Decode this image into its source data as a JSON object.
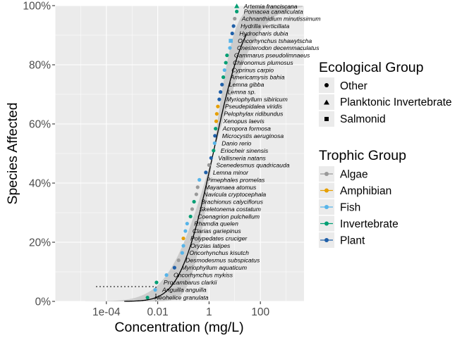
{
  "chart_data": {
    "type": "scatter",
    "xlabel": "Concentration (mg/L)",
    "ylabel": "Species Affected",
    "x_scale": "log10",
    "xlim": [
      1e-06,
      5000
    ],
    "ylim": [
      0,
      100
    ],
    "x_ticks": [
      {
        "value": 0.0001,
        "label": "1e-04"
      },
      {
        "value": 0.01,
        "label": "0.01"
      },
      {
        "value": 1,
        "label": "1"
      },
      {
        "value": 100,
        "label": "100"
      }
    ],
    "y_ticks": [
      {
        "value": 0,
        "label": "0%"
      },
      {
        "value": 20,
        "label": "20%"
      },
      {
        "value": 40,
        "label": "40%"
      },
      {
        "value": 60,
        "label": "60%"
      },
      {
        "value": 80,
        "label": "80%"
      },
      {
        "value": 100,
        "label": "100%"
      }
    ],
    "grid": true,
    "legend_position": "right",
    "colors": {
      "Algae": "#999999",
      "Amphibian": "#E69F00",
      "Fish": "#56B4E9",
      "Invertebrate": "#009E73",
      "Plant": "#1F5FA8",
      "fit_line": "#000000",
      "confidence_band": "#cccccc",
      "panel": "#ebebeb"
    },
    "hc5_guide": {
      "x": 0.0085,
      "y": 5
    },
    "fit_curve": {
      "description_model": "log-normal",
      "mean_log10": 0.16,
      "sd_log10": 1.0,
      "x_range": [
        0.0005,
        30
      ]
    },
    "confidence_band": {
      "sd_low": 0.62,
      "sd_high": 1.35
    },
    "points": [
      {
        "species": "Neohelice granulata",
        "x": 0.004,
        "y": 1.3,
        "trophic": "Invertebrate",
        "eco": "Other"
      },
      {
        "species": "Anguilla anguilla",
        "x": 0.008,
        "y": 3.9,
        "trophic": "Fish",
        "eco": "Other"
      },
      {
        "species": "Procambarus clarkii",
        "x": 0.009,
        "y": 6.4,
        "trophic": "Invertebrate",
        "eco": "Other"
      },
      {
        "species": "Oncorhynchus mykiss",
        "x": 0.022,
        "y": 8.9,
        "trophic": "Fish",
        "eco": "Other"
      },
      {
        "species": "Myriophyllum aquaticum",
        "x": 0.045,
        "y": 11.4,
        "trophic": "Plant",
        "eco": "Other"
      },
      {
        "species": "Desmodesmus subspicatus",
        "x": 0.065,
        "y": 13.9,
        "trophic": "Algae",
        "eco": "Other"
      },
      {
        "species": "Oncorhynchus kisutch",
        "x": 0.09,
        "y": 16.4,
        "trophic": "Fish",
        "eco": "Other"
      },
      {
        "species": "Oryzias latipes",
        "x": 0.1,
        "y": 18.8,
        "trophic": "Fish",
        "eco": "Other"
      },
      {
        "species": "Polypedates cruciger",
        "x": 0.1,
        "y": 21.3,
        "trophic": "Amphibian",
        "eco": "Other"
      },
      {
        "species": "Clarias gariepinus",
        "x": 0.12,
        "y": 23.8,
        "trophic": "Fish",
        "eco": "Other"
      },
      {
        "species": "Rhamdia quelen",
        "x": 0.14,
        "y": 26.3,
        "trophic": "Fish",
        "eco": "Other"
      },
      {
        "species": "Coenagrion pulchellum",
        "x": 0.19,
        "y": 28.7,
        "trophic": "Invertebrate",
        "eco": "Other"
      },
      {
        "species": "Skeletonema costatum",
        "x": 0.22,
        "y": 31.2,
        "trophic": "Algae",
        "eco": "Other"
      },
      {
        "species": "Brachionus calyciflorus",
        "x": 0.26,
        "y": 33.7,
        "trophic": "Invertebrate",
        "eco": "Other"
      },
      {
        "species": "Navicula cryptocephala",
        "x": 0.32,
        "y": 36.2,
        "trophic": "Algae",
        "eco": "Other"
      },
      {
        "species": "Mayamaea atomus",
        "x": 0.36,
        "y": 38.6,
        "trophic": "Algae",
        "eco": "Other"
      },
      {
        "species": "Pimephales promelas",
        "x": 0.42,
        "y": 41.1,
        "trophic": "Fish",
        "eco": "Other"
      },
      {
        "species": "Lemna minor",
        "x": 0.75,
        "y": 43.6,
        "trophic": "Plant",
        "eco": "Other"
      },
      {
        "species": "Scenedesmus quadricauda",
        "x": 1.0,
        "y": 46.1,
        "trophic": "Algae",
        "eco": "Other"
      },
      {
        "species": "Vallisneria natans",
        "x": 1.2,
        "y": 48.5,
        "trophic": "Plant",
        "eco": "Other"
      },
      {
        "species": "Eriocheir sinensis",
        "x": 1.5,
        "y": 51.0,
        "trophic": "Invertebrate",
        "eco": "Other"
      },
      {
        "species": "Danio rerio",
        "x": 1.65,
        "y": 53.5,
        "trophic": "Fish",
        "eco": "Other"
      },
      {
        "species": "Microcystis aeruginosa",
        "x": 1.7,
        "y": 56.0,
        "trophic": "Plant",
        "eco": "Other"
      },
      {
        "species": "Acropora formosa",
        "x": 1.8,
        "y": 58.4,
        "trophic": "Invertebrate",
        "eco": "Other"
      },
      {
        "species": "Xenopus laevis",
        "x": 1.9,
        "y": 60.9,
        "trophic": "Amphibian",
        "eco": "Other"
      },
      {
        "species": "Pelophylax ridibundus",
        "x": 2.0,
        "y": 63.4,
        "trophic": "Amphibian",
        "eco": "Other"
      },
      {
        "species": "Pseudepidalea viridis",
        "x": 2.2,
        "y": 65.9,
        "trophic": "Amphibian",
        "eco": "Other"
      },
      {
        "species": "Myriophyllum sibiricum",
        "x": 2.5,
        "y": 68.3,
        "trophic": "Plant",
        "eco": "Other"
      },
      {
        "species": "Lemna sp.",
        "x": 2.8,
        "y": 70.8,
        "trophic": "Plant",
        "eco": "Other"
      },
      {
        "species": "Lemna gibba",
        "x": 3.2,
        "y": 73.3,
        "trophic": "Plant",
        "eco": "Other"
      },
      {
        "species": "Americamysis bahia",
        "x": 3.6,
        "y": 75.8,
        "trophic": "Invertebrate",
        "eco": "Other"
      },
      {
        "species": "Cyprinus carpio",
        "x": 4.0,
        "y": 78.2,
        "trophic": "Fish",
        "eco": "Other"
      },
      {
        "species": "Chironomus plumosus",
        "x": 4.5,
        "y": 80.7,
        "trophic": "Invertebrate",
        "eco": "Other"
      },
      {
        "species": "Gammarus pseudolimnaeus",
        "x": 5.0,
        "y": 83.2,
        "trophic": "Invertebrate",
        "eco": "Other"
      },
      {
        "species": "Cnesterodon decemmaculatus",
        "x": 6.5,
        "y": 85.7,
        "trophic": "Fish",
        "eco": "Other"
      },
      {
        "species": "Oncorhynchus tshawytscha",
        "x": 7.0,
        "y": 88.1,
        "trophic": "Fish",
        "eco": "Salmonid"
      },
      {
        "species": "Hydrocharis dubia",
        "x": 8.0,
        "y": 90.6,
        "trophic": "Plant",
        "eco": "Other"
      },
      {
        "species": "Hydrilla verticillata",
        "x": 9.0,
        "y": 93.1,
        "trophic": "Plant",
        "eco": "Other"
      },
      {
        "species": "Achnanthidium minutissimum",
        "x": 10.0,
        "y": 95.6,
        "trophic": "Algae",
        "eco": "Other"
      },
      {
        "species": "Pomacea canaliculata",
        "x": 12.0,
        "y": 98.0,
        "trophic": "Invertebrate",
        "eco": "Other"
      },
      {
        "species": "Artemia franciscana",
        "x": 12.0,
        "y": 99.8,
        "trophic": "Invertebrate",
        "eco": "Planktonic Invertebrate"
      }
    ]
  },
  "legend": {
    "eco_title": "Ecological Group",
    "eco_items": [
      {
        "label": "Other",
        "shape": "circle"
      },
      {
        "label": "Planktonic Invertebrate",
        "shape": "triangle"
      },
      {
        "label": "Salmonid",
        "shape": "square"
      }
    ],
    "trophic_title": "Trophic Group",
    "trophic_items": [
      "Algae",
      "Amphibian",
      "Fish",
      "Invertebrate",
      "Plant"
    ]
  }
}
